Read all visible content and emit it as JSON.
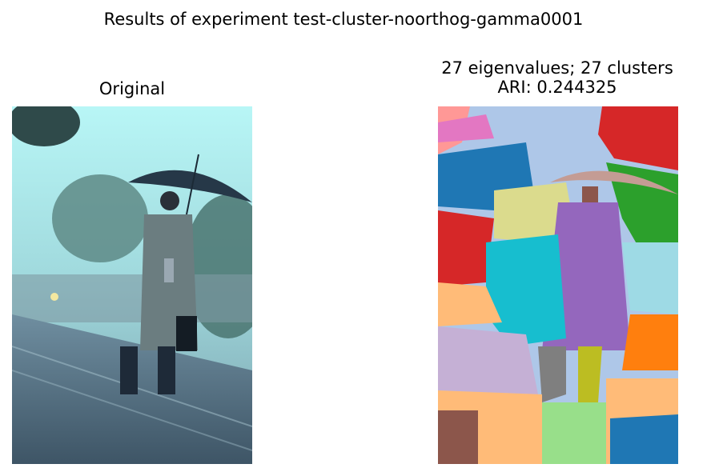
{
  "figure": {
    "suptitle": "Results of experiment test-cluster-noorthog-gamma0001"
  },
  "panels": {
    "original": {
      "title": "Original",
      "image": "photo of a man in a trench coat holding an umbrella on a rainy train platform"
    },
    "clustered": {
      "title_line1": "27 eigenvalues; 27 clusters",
      "title_line2": "ARI: 0.244325",
      "image": "color-coded segmentation map of the same photo"
    }
  },
  "colors": {
    "sky": "#a9f0f0",
    "coat": "#6b7d80",
    "umbrella": "#263848",
    "seg_blue": "#1f77b4",
    "seg_red": "#d62728",
    "seg_green": "#2ca02c",
    "seg_purple": "#9467bd",
    "seg_cyan": "#17becf",
    "seg_orange": "#ff7f0e",
    "seg_lightblue": "#aec7e8",
    "seg_olive": "#bcbd22",
    "seg_gray": "#7f7f7f",
    "seg_brown": "#8c564b",
    "seg_pink": "#e377c2"
  }
}
